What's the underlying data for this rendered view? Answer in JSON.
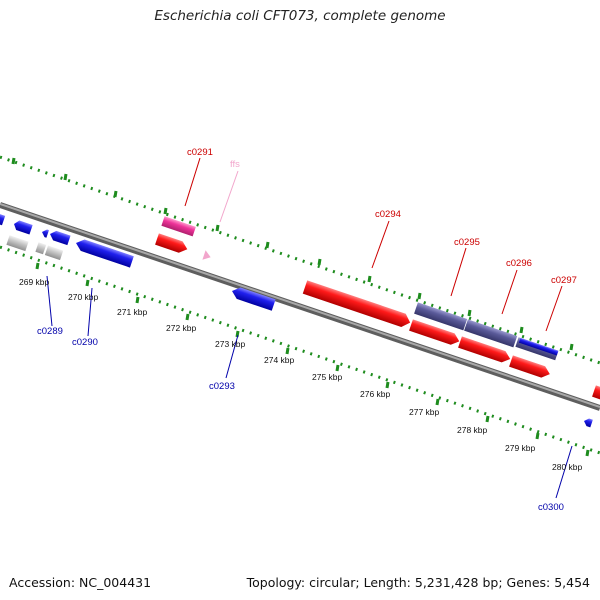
{
  "title": "Escherichia coli CFT073, complete genome",
  "footer": {
    "accession": "Accession: NC_004431",
    "topology": "Topology: circular; Length: 5,231,428 bp; Genes: 5,454"
  },
  "colors": {
    "forward_gene": "#ee0000",
    "reverse_gene": "#1a1ae6",
    "rna": "#ee3399",
    "trna": "#f2a6cc",
    "operon": "#5a5a99",
    "pseudo": "#bdbdbd",
    "backbone": "#8c8c8c",
    "ticks": "#1e8c1e",
    "label_forward": "#cc0000",
    "label_reverse": "#0000aa"
  },
  "scale_labels": [
    "269 kbp",
    "270 kbp",
    "271 kbp",
    "272 kbp",
    "273 kbp",
    "274 kbp",
    "275 kbp",
    "276 kbp",
    "277 kbp",
    "278 kbp",
    "279 kbp",
    "280 kbp"
  ],
  "gene_labels": {
    "c0291": "c0291",
    "ffs": "ffs",
    "c0294": "c0294",
    "c0295": "c0295",
    "c0296": "c0296",
    "c0297": "c0297",
    "c0289": "c0289",
    "c0290": "c0290",
    "c0293": "c0293",
    "c0300": "c0300"
  }
}
